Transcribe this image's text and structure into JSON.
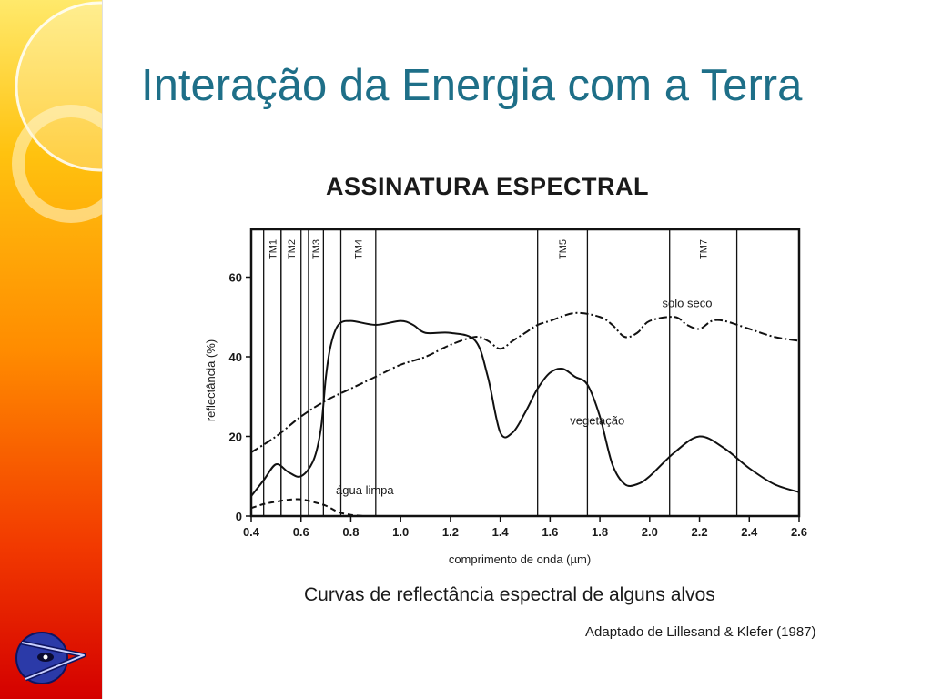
{
  "slide": {
    "title": "Interação da Energia com a Terra",
    "accent_color": "#1e6f88",
    "logo_icon": "eye-arrow-logo-icon"
  },
  "figure": {
    "heading": "ASSINATURA ESPECTRAL",
    "caption": "Curvas de reflectância espectral de alguns alvos",
    "source": "Adaptado de Lillesand & Klefer (1987)"
  },
  "chart_data": {
    "type": "line",
    "title": "ASSINATURA ESPECTRAL",
    "xlabel": "comprimento de onda (µm)",
    "ylabel": "reflectância (%)",
    "xlim": [
      0.4,
      2.6
    ],
    "ylim": [
      0,
      72
    ],
    "x_ticks": [
      "0.4",
      "0.6",
      "0.8",
      "1.0",
      "1.2",
      "1.4",
      "1.6",
      "1.8",
      "2.0",
      "2.2",
      "2.4",
      "2.6"
    ],
    "y_ticks": [
      "0",
      "20",
      "40",
      "60"
    ],
    "y_tick_values": [
      0,
      20,
      40,
      60
    ],
    "grid": false,
    "bands": [
      {
        "name": "TM1",
        "x": [
          0.45,
          0.52
        ]
      },
      {
        "name": "TM2",
        "x": [
          0.52,
          0.6
        ]
      },
      {
        "name": "TM3",
        "x": [
          0.63,
          0.69
        ]
      },
      {
        "name": "TM4",
        "x": [
          0.76,
          0.9
        ]
      },
      {
        "name": "TM5",
        "x": [
          1.55,
          1.75
        ]
      },
      {
        "name": "TM7",
        "x": [
          2.08,
          2.35
        ]
      }
    ],
    "series": [
      {
        "name": "vegetação",
        "style": "solid",
        "x": [
          0.4,
          0.45,
          0.5,
          0.55,
          0.6,
          0.65,
          0.68,
          0.7,
          0.72,
          0.75,
          0.8,
          0.9,
          1.0,
          1.05,
          1.1,
          1.2,
          1.3,
          1.35,
          1.4,
          1.45,
          1.5,
          1.55,
          1.6,
          1.65,
          1.7,
          1.75,
          1.8,
          1.85,
          1.9,
          1.95,
          2.0,
          2.1,
          2.2,
          2.3,
          2.4,
          2.5,
          2.6
        ],
        "y": [
          5,
          9,
          13,
          11,
          10,
          14,
          22,
          35,
          43,
          48,
          49,
          48,
          49,
          48,
          46,
          46,
          44,
          35,
          21,
          21,
          26,
          32,
          36,
          37,
          35,
          33,
          25,
          13,
          8,
          8,
          10,
          16,
          20,
          17,
          12,
          8,
          6
        ]
      },
      {
        "name": "solo seco",
        "style": "dash-dot",
        "x": [
          0.4,
          0.5,
          0.6,
          0.7,
          0.8,
          0.9,
          1.0,
          1.1,
          1.2,
          1.3,
          1.35,
          1.4,
          1.45,
          1.5,
          1.55,
          1.6,
          1.7,
          1.8,
          1.85,
          1.9,
          1.95,
          2.0,
          2.1,
          2.15,
          2.2,
          2.25,
          2.3,
          2.4,
          2.5,
          2.6
        ],
        "y": [
          16,
          20,
          25,
          29,
          32,
          35,
          38,
          40,
          43,
          45,
          44,
          42,
          44,
          46,
          48,
          49,
          51,
          50,
          48,
          45,
          46,
          49,
          50,
          48,
          47,
          49,
          49,
          47,
          45,
          44
        ]
      },
      {
        "name": "água limpa",
        "style": "dashed",
        "x": [
          0.4,
          0.45,
          0.5,
          0.55,
          0.6,
          0.65,
          0.7,
          0.75,
          0.8,
          0.85
        ],
        "y": [
          2,
          3,
          3.6,
          4.1,
          4.2,
          3.5,
          2.6,
          1.0,
          0.3,
          0
        ]
      }
    ],
    "annotations": [
      {
        "text": "solo seco",
        "series": "solo seco"
      },
      {
        "text": "vegetação",
        "series": "vegetação"
      },
      {
        "text": "água limpa",
        "series": "água limpa"
      }
    ]
  }
}
